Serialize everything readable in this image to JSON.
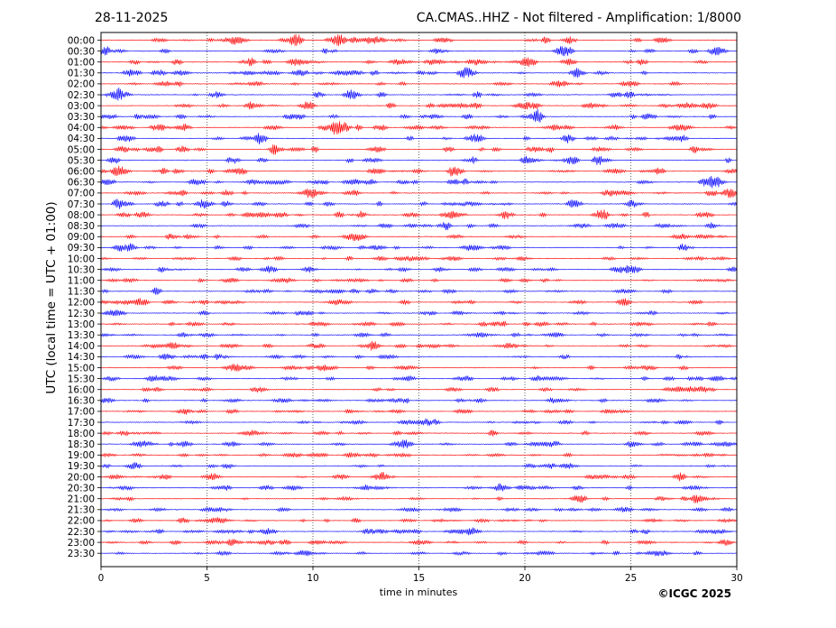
{
  "header": {
    "date": "28-11-2025",
    "title": "CA.CMAS..HHZ - Not filtered - Amplification: 1/8000"
  },
  "footer": {
    "copyright": "©ICGC 2025"
  },
  "chart_data": {
    "type": "line",
    "title": "CA.CMAS..HHZ - Not filtered - Amplification: 1/8000",
    "xlabel": "time in minutes",
    "ylabel": "UTC (local time = UTC + 01:00)",
    "xlim": [
      0,
      30
    ],
    "x_ticks": [
      "0",
      "5",
      "10",
      "15",
      "20",
      "25",
      "30"
    ],
    "y_ticks": [
      "00:00",
      "00:30",
      "01:00",
      "01:30",
      "02:00",
      "02:30",
      "03:00",
      "03:30",
      "04:00",
      "04:30",
      "05:00",
      "05:30",
      "06:00",
      "06:30",
      "07:00",
      "07:30",
      "08:00",
      "08:30",
      "09:00",
      "09:30",
      "10:00",
      "10:30",
      "11:00",
      "11:30",
      "12:00",
      "12:30",
      "13:00",
      "13:30",
      "14:00",
      "14:30",
      "15:00",
      "15:30",
      "16:00",
      "16:30",
      "17:00",
      "17:30",
      "18:00",
      "18:30",
      "19:00",
      "19:30",
      "20:00",
      "20:30",
      "21:00",
      "21:30",
      "22:00",
      "22:30",
      "23:00",
      "23:30"
    ],
    "grid": "vertical dotted",
    "trace_colors": [
      "#ff0000",
      "#0000ff"
    ]
  }
}
